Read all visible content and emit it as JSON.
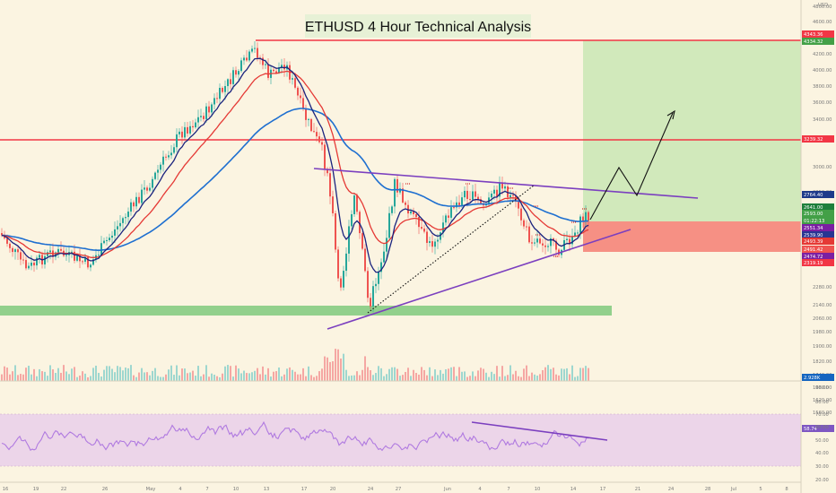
{
  "chart_data": {
    "type": "candlestick",
    "title": "ETHUSD 4 Hour Technical Analysis",
    "currency_label": "USD",
    "y_ticks": [
      4800,
      4600,
      4400,
      4200,
      4000,
      3800,
      3600,
      3400,
      3200,
      3000,
      2850,
      2700,
      2560,
      2420,
      2280,
      2140,
      2060,
      1980,
      1900,
      1820,
      1740,
      1680,
      1620,
      1560
    ],
    "x_ticks": [
      "16",
      "19",
      "22",
      "26",
      "May",
      "4",
      "7",
      "10",
      "13",
      "17",
      "20",
      "24",
      "27",
      "Jun",
      "4",
      "7",
      "10",
      "14",
      "17",
      "21",
      "24",
      "28",
      "Jul",
      "5",
      "8"
    ],
    "price_tags": [
      {
        "text": "4343.36",
        "color": "#f23645"
      },
      {
        "text": "4334.32",
        "color": "#43a047"
      },
      {
        "text": "3239.32",
        "color": "#f23645"
      },
      {
        "text": "2764.40",
        "color": "#1e3a8a"
      },
      {
        "text": "2641.00",
        "color": "#1e7f3c"
      },
      {
        "text": "2593.00",
        "color": "#43a047"
      },
      {
        "text": "01:22:13",
        "color": "#43a047"
      },
      {
        "text": "2551.34",
        "color": "#7b1fa2"
      },
      {
        "text": "2539.90",
        "color": "#283593"
      },
      {
        "text": "2493.39",
        "color": "#e53935"
      },
      {
        "text": "2491.42",
        "color": "#ef5350"
      },
      {
        "text": "2474.72",
        "color": "#7b1fa2"
      },
      {
        "text": "2319.19",
        "color": "#f23645"
      }
    ],
    "volume_tags": [
      {
        "text": "2.928K",
        "color": "#1565c0"
      }
    ],
    "rsi": {
      "ticks": [
        90,
        80,
        70,
        60,
        50,
        40,
        30,
        20
      ],
      "value_tag": {
        "text": "58.74",
        "color": "#7e57c2"
      }
    },
    "colors": {
      "up": "#26a69a",
      "down": "#ef5350",
      "ema_fast": "#1a237e",
      "ema_slow": "#e53935",
      "ema_long": "#1e6fd0",
      "resistance": "#f23645",
      "trendline": "#7b3fbf",
      "support_zone": "#7cc47a",
      "target_zone": "#c8e6b3",
      "stop_zone": "#f4837a",
      "rsi_band": "#ead1ea",
      "rsi_line": "#b07ae0"
    }
  }
}
